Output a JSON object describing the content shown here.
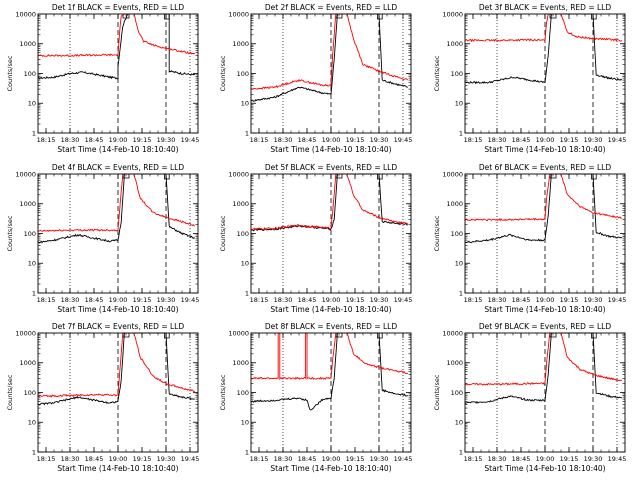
{
  "figure": {
    "series_colors": {
      "events": "#000000",
      "lld": "#ff0000"
    }
  },
  "chart_data": [
    {
      "type": "line",
      "title": "Det 1f BLACK = Events, RED = LLD",
      "xlabel": "Start Time (14-Feb-10 18:10:40)",
      "ylabel": "Counts/sec",
      "y_scale": "log",
      "ylim": [
        1,
        10000
      ],
      "xlim": [
        "18:10",
        "19:50"
      ],
      "x_ticks": [
        "18:15",
        "18:30",
        "18:45",
        "19:00",
        "19:15",
        "19:30",
        "19:45"
      ],
      "y_ticks": [
        "1",
        "10",
        "100",
        "1000",
        "10000"
      ],
      "series": [
        {
          "name": "Events",
          "color": "#000000",
          "x": [
            "18:10",
            "18:20",
            "18:30",
            "18:38",
            "18:45",
            "18:55",
            "19:00",
            "19:00",
            "19:03",
            "19:06",
            "19:12",
            "19:15",
            "19:25",
            "19:29",
            "19:29",
            "19:30",
            "19:32",
            "19:32",
            "19:40",
            "19:48"
          ],
          "y": [
            70,
            75,
            100,
            110,
            95,
            75,
            70,
            180,
            4000,
            10000,
            10000,
            10000,
            10000,
            10000,
            10000,
            10000,
            10000,
            120,
            100,
            90
          ]
        },
        {
          "name": "LLD",
          "color": "#ff0000",
          "x": [
            "18:10",
            "18:30",
            "18:50",
            "19:00",
            "19:01",
            "19:02",
            "19:04",
            "19:10",
            "19:13",
            "19:16",
            "19:22",
            "19:30",
            "19:40",
            "19:48"
          ],
          "y": [
            400,
            400,
            420,
            420,
            2500,
            8000,
            10000,
            10000,
            2500,
            1200,
            900,
            700,
            550,
            450
          ]
        }
      ]
    },
    {
      "type": "line",
      "title": "Det 2f BLACK = Events, RED = LLD",
      "xlabel": "Start Time (14-Feb-10 18:10:40)",
      "ylabel": "Counts/sec",
      "y_scale": "log",
      "ylim": [
        1,
        10000
      ],
      "xlim": [
        "18:10",
        "19:50"
      ],
      "x_ticks": [
        "18:15",
        "18:30",
        "18:45",
        "19:00",
        "19:15",
        "19:30",
        "19:45"
      ],
      "y_ticks": [
        "1",
        "10",
        "100",
        "1000",
        "10000"
      ],
      "series": [
        {
          "name": "Events",
          "color": "#000000",
          "x": [
            "18:10",
            "18:25",
            "18:40",
            "18:55",
            "19:00",
            "19:02",
            "19:04",
            "19:20",
            "19:29",
            "19:30",
            "19:32",
            "19:40",
            "19:48"
          ],
          "y": [
            12,
            16,
            35,
            22,
            20,
            300,
            10000,
            10000,
            10000,
            10000,
            60,
            45,
            35
          ]
        },
        {
          "name": "LLD",
          "color": "#ff0000",
          "x": [
            "18:10",
            "18:25",
            "18:40",
            "18:55",
            "19:00",
            "19:01",
            "19:03",
            "19:10",
            "19:14",
            "19:20",
            "19:30",
            "19:40",
            "19:48"
          ],
          "y": [
            30,
            35,
            60,
            40,
            40,
            400,
            10000,
            10000,
            1500,
            200,
            120,
            80,
            60
          ]
        }
      ]
    },
    {
      "type": "line",
      "title": "Det 3f BLACK = Events, RED = LLD",
      "xlabel": "Start Time (14-Feb-10 18:10:40)",
      "ylabel": "Counts/sec",
      "y_scale": "log",
      "ylim": [
        1,
        10000
      ],
      "xlim": [
        "18:10",
        "19:50"
      ],
      "x_ticks": [
        "18:15",
        "18:30",
        "18:45",
        "19:00",
        "19:15",
        "19:30",
        "19:45"
      ],
      "y_ticks": [
        "1",
        "10",
        "100",
        "1000",
        "10000"
      ],
      "series": [
        {
          "name": "Events",
          "color": "#000000",
          "x": [
            "18:10",
            "18:25",
            "18:40",
            "18:55",
            "19:00",
            "19:02",
            "19:04",
            "19:20",
            "19:29",
            "19:30",
            "19:32",
            "19:40",
            "19:48"
          ],
          "y": [
            50,
            50,
            75,
            55,
            50,
            400,
            10000,
            10000,
            10000,
            10000,
            90,
            70,
            60
          ]
        },
        {
          "name": "LLD",
          "color": "#ff0000",
          "x": [
            "18:10",
            "18:30",
            "18:50",
            "19:00",
            "19:01",
            "19:02",
            "19:04",
            "19:10",
            "19:14",
            "19:20",
            "19:30",
            "19:40",
            "19:48"
          ],
          "y": [
            1300,
            1300,
            1350,
            1300,
            5000,
            10000,
            10000,
            10000,
            2500,
            1700,
            1500,
            1400,
            1300
          ]
        }
      ]
    },
    {
      "type": "line",
      "title": "Det 4f BLACK = Events, RED = LLD",
      "xlabel": "Start Time (14-Feb-10 18:10:40)",
      "ylabel": "Counts/sec",
      "y_scale": "log",
      "ylim": [
        1,
        10000
      ],
      "xlim": [
        "18:10",
        "19:50"
      ],
      "x_ticks": [
        "18:15",
        "18:30",
        "18:45",
        "19:00",
        "19:15",
        "19:30",
        "19:45"
      ],
      "y_ticks": [
        "1",
        "10",
        "100",
        "1000",
        "10000"
      ],
      "series": [
        {
          "name": "Events",
          "color": "#000000",
          "x": [
            "18:10",
            "18:20",
            "18:35",
            "18:45",
            "18:55",
            "19:00",
            "19:02",
            "19:04",
            "19:20",
            "19:29",
            "19:30",
            "19:32",
            "19:40",
            "19:48"
          ],
          "y": [
            50,
            60,
            90,
            70,
            55,
            60,
            250,
            10000,
            10000,
            10000,
            10000,
            170,
            100,
            70
          ]
        },
        {
          "name": "LLD",
          "color": "#ff0000",
          "x": [
            "18:10",
            "18:30",
            "18:50",
            "19:00",
            "19:01",
            "19:03",
            "19:10",
            "19:14",
            "19:22",
            "19:30",
            "19:40",
            "19:48"
          ],
          "y": [
            120,
            130,
            130,
            130,
            600,
            10000,
            10000,
            1500,
            500,
            350,
            250,
            180
          ]
        }
      ]
    },
    {
      "type": "line",
      "title": "Det 5f BLACK = Events, RED = LLD",
      "xlabel": "Start Time (14-Feb-10 18:10:40)",
      "ylabel": "Counts/sec",
      "y_scale": "log",
      "ylim": [
        1,
        10000
      ],
      "xlim": [
        "18:10",
        "19:50"
      ],
      "x_ticks": [
        "18:15",
        "18:30",
        "18:45",
        "19:00",
        "19:15",
        "19:30",
        "19:45"
      ],
      "y_ticks": [
        "1",
        "10",
        "100",
        "1000",
        "10000"
      ],
      "series": [
        {
          "name": "Events",
          "color": "#000000",
          "x": [
            "18:10",
            "18:25",
            "18:40",
            "18:55",
            "19:00",
            "19:02",
            "19:04",
            "19:20",
            "19:29",
            "19:30",
            "19:32",
            "19:40",
            "19:48"
          ],
          "y": [
            130,
            140,
            180,
            150,
            140,
            300,
            10000,
            10000,
            10000,
            10000,
            250,
            220,
            200
          ]
        },
        {
          "name": "LLD",
          "color": "#ff0000",
          "x": [
            "18:10",
            "18:25",
            "18:40",
            "18:55",
            "19:00",
            "19:01",
            "19:03",
            "19:10",
            "19:14",
            "19:20",
            "19:30",
            "19:40",
            "19:48"
          ],
          "y": [
            140,
            150,
            190,
            160,
            150,
            500,
            10000,
            10000,
            2000,
            600,
            350,
            250,
            220
          ]
        }
      ]
    },
    {
      "type": "line",
      "title": "Det 6f BLACK = Events, RED = LLD",
      "xlabel": "Start Time (14-Feb-10 18:10:40)",
      "ylabel": "Counts/sec",
      "y_scale": "log",
      "ylim": [
        1,
        10000
      ],
      "xlim": [
        "18:10",
        "19:50"
      ],
      "x_ticks": [
        "18:15",
        "18:30",
        "18:45",
        "19:00",
        "19:15",
        "19:30",
        "19:45"
      ],
      "y_ticks": [
        "1",
        "10",
        "100",
        "1000",
        "10000"
      ],
      "series": [
        {
          "name": "Events",
          "color": "#000000",
          "x": [
            "18:10",
            "18:25",
            "18:38",
            "18:50",
            "19:00",
            "19:02",
            "19:04",
            "19:20",
            "19:29",
            "19:30",
            "19:32",
            "19:40",
            "19:48"
          ],
          "y": [
            50,
            60,
            90,
            60,
            60,
            400,
            10000,
            10000,
            10000,
            10000,
            110,
            80,
            70
          ]
        },
        {
          "name": "LLD",
          "color": "#ff0000",
          "x": [
            "18:10",
            "18:30",
            "18:50",
            "19:00",
            "19:01",
            "19:03",
            "19:10",
            "19:14",
            "19:22",
            "19:30",
            "19:40",
            "19:48"
          ],
          "y": [
            290,
            290,
            300,
            300,
            1500,
            10000,
            10000,
            2000,
            800,
            500,
            400,
            330
          ]
        }
      ]
    },
    {
      "type": "line",
      "title": "Det 7f BLACK = Events, RED = LLD",
      "xlabel": "Start Time (14-Feb-10 18:10:40)",
      "ylabel": "Counts/sec",
      "y_scale": "log",
      "ylim": [
        1,
        10000
      ],
      "xlim": [
        "18:10",
        "19:50"
      ],
      "x_ticks": [
        "18:15",
        "18:30",
        "18:45",
        "19:00",
        "19:15",
        "19:30",
        "19:45"
      ],
      "y_ticks": [
        "1",
        "10",
        "100",
        "1000",
        "10000"
      ],
      "series": [
        {
          "name": "Events",
          "color": "#000000",
          "x": [
            "18:10",
            "18:20",
            "18:35",
            "18:45",
            "18:55",
            "19:00",
            "19:02",
            "19:04",
            "19:20",
            "19:29",
            "19:30",
            "19:32",
            "19:40",
            "19:48"
          ],
          "y": [
            40,
            45,
            70,
            55,
            45,
            50,
            250,
            10000,
            10000,
            10000,
            10000,
            90,
            70,
            60
          ]
        },
        {
          "name": "LLD",
          "color": "#ff0000",
          "x": [
            "18:10",
            "18:30",
            "18:50",
            "19:00",
            "19:01",
            "19:03",
            "19:10",
            "19:14",
            "19:22",
            "19:30",
            "19:40",
            "19:48"
          ],
          "y": [
            75,
            80,
            85,
            80,
            400,
            10000,
            10000,
            1500,
            350,
            200,
            140,
            110
          ]
        }
      ]
    },
    {
      "type": "line",
      "title": "Det 8f BLACK = Events, RED = LLD",
      "xlabel": "Start Time (14-Feb-10 18:10:40)",
      "ylabel": "Counts/sec",
      "y_scale": "log",
      "ylim": [
        1,
        10000
      ],
      "xlim": [
        "18:10",
        "19:50"
      ],
      "x_ticks": [
        "18:15",
        "18:30",
        "18:45",
        "19:00",
        "19:15",
        "19:30",
        "19:45"
      ],
      "y_ticks": [
        "1",
        "10",
        "100",
        "1000",
        "10000"
      ],
      "series": [
        {
          "name": "Events",
          "color": "#000000",
          "x": [
            "18:10",
            "18:25",
            "18:40",
            "18:45",
            "18:47",
            "18:55",
            "19:00",
            "19:02",
            "19:04",
            "19:20",
            "19:29",
            "19:30",
            "19:32",
            "19:40",
            "19:48"
          ],
          "y": [
            50,
            55,
            65,
            55,
            25,
            60,
            65,
            300,
            10000,
            10000,
            10000,
            10000,
            120,
            90,
            80
          ]
        },
        {
          "name": "LLD",
          "color": "#ff0000",
          "x": [
            "18:10",
            "18:27",
            "18:27",
            "18:28",
            "18:28",
            "18:44",
            "18:44",
            "18:45",
            "18:45",
            "18:55",
            "19:00",
            "19:01",
            "19:03",
            "19:10",
            "19:14",
            "19:22",
            "19:30",
            "19:40",
            "19:48"
          ],
          "y": [
            300,
            300,
            10000,
            10000,
            300,
            300,
            10000,
            10000,
            300,
            300,
            300,
            1200,
            10000,
            10000,
            2000,
            900,
            700,
            550,
            450
          ]
        }
      ]
    },
    {
      "type": "line",
      "title": "Det 9f BLACK = Events, RED = LLD",
      "xlabel": "Start Time (14-Feb-10 18:10:40)",
      "ylabel": "Counts/sec",
      "y_scale": "log",
      "ylim": [
        1,
        10000
      ],
      "xlim": [
        "18:10",
        "19:50"
      ],
      "x_ticks": [
        "18:15",
        "18:30",
        "18:45",
        "19:00",
        "19:15",
        "19:30",
        "19:45"
      ],
      "y_ticks": [
        "1",
        "10",
        "100",
        "1000",
        "10000"
      ],
      "series": [
        {
          "name": "Events",
          "color": "#000000",
          "x": [
            "18:10",
            "18:25",
            "18:38",
            "18:50",
            "19:00",
            "19:02",
            "19:04",
            "19:20",
            "19:29",
            "19:30",
            "19:32",
            "19:40",
            "19:48"
          ],
          "y": [
            45,
            50,
            75,
            55,
            55,
            400,
            10000,
            10000,
            10000,
            10000,
            100,
            75,
            65
          ]
        },
        {
          "name": "LLD",
          "color": "#ff0000",
          "x": [
            "18:10",
            "18:30",
            "18:50",
            "19:00",
            "19:01",
            "19:03",
            "19:10",
            "19:14",
            "19:22",
            "19:30",
            "19:40",
            "19:48"
          ],
          "y": [
            190,
            190,
            200,
            200,
            1000,
            10000,
            10000,
            1500,
            600,
            400,
            300,
            250
          ]
        }
      ]
    }
  ]
}
